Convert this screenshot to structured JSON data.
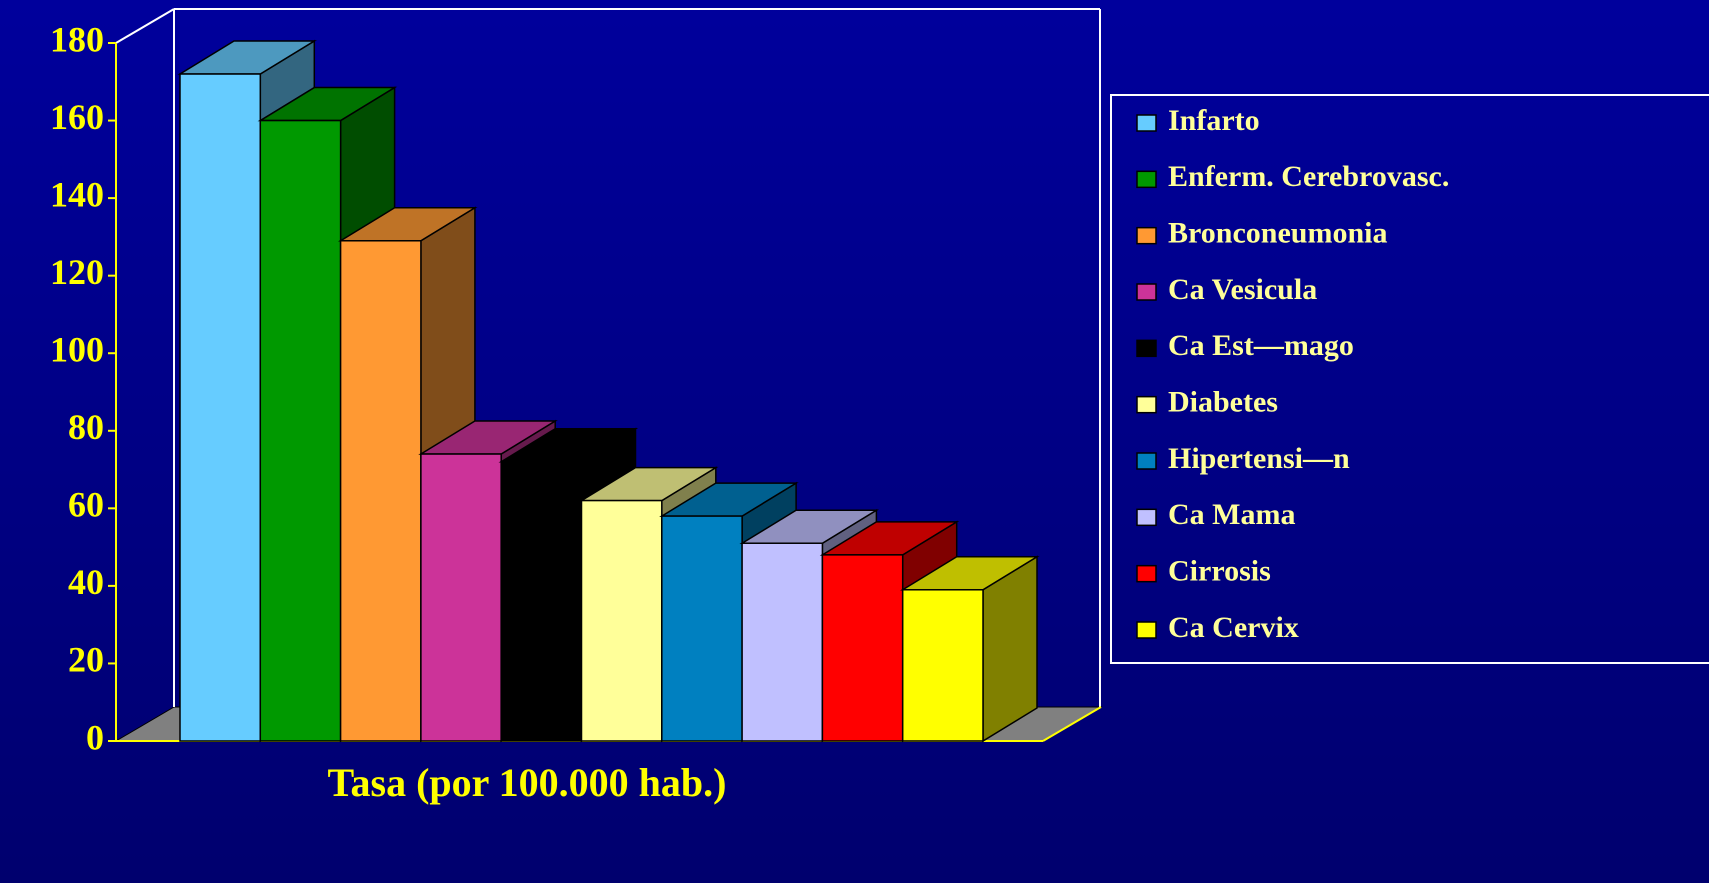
{
  "chart_data": {
    "type": "bar3d",
    "categories": [
      "Infarto",
      "Enferm. Cerebrovasc.",
      "Bronconeumonia",
      "Ca Vesicula",
      "Ca Est—mago",
      "Diabetes",
      "Hipertensi—n",
      "Ca Mama",
      "Cirrosis",
      "Ca Cervix"
    ],
    "values": [
      172,
      160,
      129,
      74,
      72,
      62,
      58,
      51,
      48,
      39
    ],
    "colors": [
      "#66ccff",
      "#009900",
      "#ff9933",
      "#cc3399",
      "#000000",
      "#ffff99",
      "#0080c0",
      "#c0c0ff",
      "#ff0000",
      "#ffff00"
    ],
    "xlabel": "Tasa (por 100.000 hab.)",
    "ylim": [
      0,
      180
    ],
    "yticks": [
      0,
      20,
      40,
      60,
      80,
      100,
      120,
      140,
      160,
      180
    ],
    "legend": "right"
  }
}
